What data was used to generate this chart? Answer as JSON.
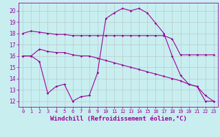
{
  "background_color": "#c8eef0",
  "line_color": "#990099",
  "grid_color": "#b0b0b0",
  "xlabel": "Windchill (Refroidissement éolien,°C)",
  "xlabel_fontsize": 6.5,
  "xtick_fontsize": 5.0,
  "ytick_fontsize": 5.5,
  "ylim": [
    11.5,
    20.7
  ],
  "xlim": [
    -0.5,
    23.5
  ],
  "xticks": [
    0,
    1,
    2,
    3,
    4,
    5,
    6,
    7,
    8,
    9,
    10,
    11,
    12,
    13,
    14,
    15,
    16,
    17,
    18,
    19,
    20,
    21,
    22,
    23
  ],
  "yticks": [
    12,
    13,
    14,
    15,
    16,
    17,
    18,
    19,
    20
  ],
  "line1_x": [
    0,
    1,
    2,
    3,
    4,
    5,
    6,
    7,
    8,
    9,
    10,
    11,
    12,
    13,
    14,
    15,
    16,
    17,
    18,
    19,
    20,
    21,
    22,
    23
  ],
  "line1_y": [
    18.0,
    18.2,
    18.1,
    18.0,
    17.9,
    17.9,
    17.8,
    17.8,
    17.8,
    17.8,
    17.8,
    17.8,
    17.8,
    17.8,
    17.8,
    17.8,
    17.8,
    17.8,
    17.5,
    16.1,
    16.1,
    16.1,
    16.1,
    16.1
  ],
  "line2_x": [
    0,
    1,
    2,
    3,
    4,
    5,
    6,
    7,
    8,
    9,
    10,
    11,
    12,
    13,
    14,
    15,
    16,
    17,
    18,
    19,
    20,
    21,
    22,
    23
  ],
  "line2_y": [
    16.0,
    16.0,
    16.6,
    16.4,
    16.3,
    16.3,
    16.1,
    16.0,
    16.0,
    15.8,
    15.6,
    15.4,
    15.2,
    15.0,
    14.8,
    14.6,
    14.4,
    14.2,
    14.0,
    13.8,
    13.5,
    13.3,
    12.5,
    12.0
  ],
  "line3_x": [
    0,
    1,
    2,
    3,
    4,
    5,
    6,
    7,
    8,
    9,
    10,
    11,
    12,
    13,
    14,
    15,
    16,
    17,
    18,
    19,
    20,
    21,
    22,
    23
  ],
  "line3_y": [
    16.0,
    16.0,
    15.5,
    12.7,
    13.3,
    13.5,
    12.0,
    12.4,
    12.5,
    14.5,
    19.3,
    19.8,
    20.2,
    20.0,
    20.2,
    19.8,
    18.9,
    18.0,
    16.0,
    14.3,
    13.5,
    13.3,
    12.0,
    12.0
  ]
}
